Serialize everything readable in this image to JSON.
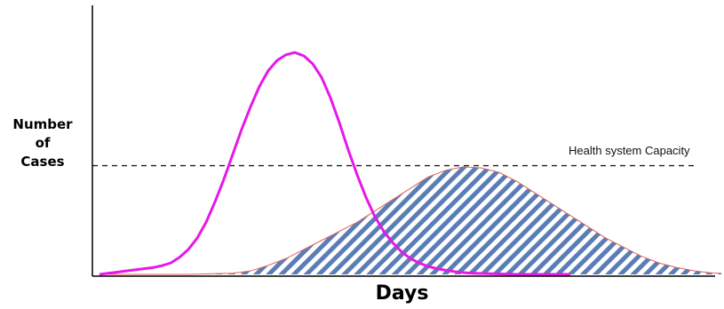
{
  "chart_data": {
    "type": "line",
    "title": "",
    "xlabel": "Days",
    "ylabel": "Number\nof\nCases",
    "ylim": [
      0,
      100
    ],
    "grid": false,
    "annotations": [
      {
        "text": "Health system Capacity",
        "y": 48,
        "style": "dashed-line"
      }
    ],
    "series": [
      {
        "style": "solid-line",
        "color": "#e619e6",
        "x": [
          0,
          10,
          20,
          30,
          40,
          50,
          60,
          70,
          80,
          90,
          100,
          110,
          120,
          130,
          140,
          150,
          160,
          170,
          180,
          190,
          200,
          210,
          220,
          230,
          240,
          250,
          260,
          270,
          280,
          290,
          300,
          310,
          320,
          330,
          340,
          350,
          360,
          370,
          380,
          390,
          400,
          410,
          420,
          430,
          440,
          450,
          460,
          470,
          480,
          490,
          500,
          510,
          520,
          530
        ],
        "y": [
          0,
          0.5,
          1,
          1.5,
          2,
          2.5,
          3,
          3.8,
          5,
          7.5,
          11,
          16,
          23,
          32,
          42,
          53,
          64,
          74,
          83,
          90,
          94.5,
          97,
          98,
          96.5,
          93,
          87,
          78,
          67,
          55,
          44,
          34,
          25.5,
          19,
          14,
          10,
          7,
          5,
          3.5,
          2.5,
          1.8,
          1.2,
          0.8,
          0.5,
          0.4,
          0.3,
          0.2,
          0.1,
          0,
          0,
          0,
          0,
          0,
          0,
          0
        ]
      },
      {
        "style": "hatched-area",
        "color": "#5a7db5",
        "edge_color": "#e0605a",
        "x": [
          0,
          50,
          100,
          150,
          170,
          190,
          210,
          230,
          250,
          270,
          290,
          310,
          330,
          350,
          370,
          390,
          410,
          430,
          450,
          470,
          490,
          510,
          530,
          550,
          570,
          590,
          610,
          630,
          650,
          670,
          690,
          700
        ],
        "y": [
          0,
          0,
          0,
          0.5,
          1.5,
          4,
          7,
          11,
          15,
          19,
          23,
          28,
          33,
          38,
          43,
          46,
          47.5,
          47,
          45,
          41,
          36,
          31,
          26,
          21,
          16,
          12,
          8,
          5,
          3,
          1.5,
          0.6,
          0.5
        ]
      }
    ]
  }
}
